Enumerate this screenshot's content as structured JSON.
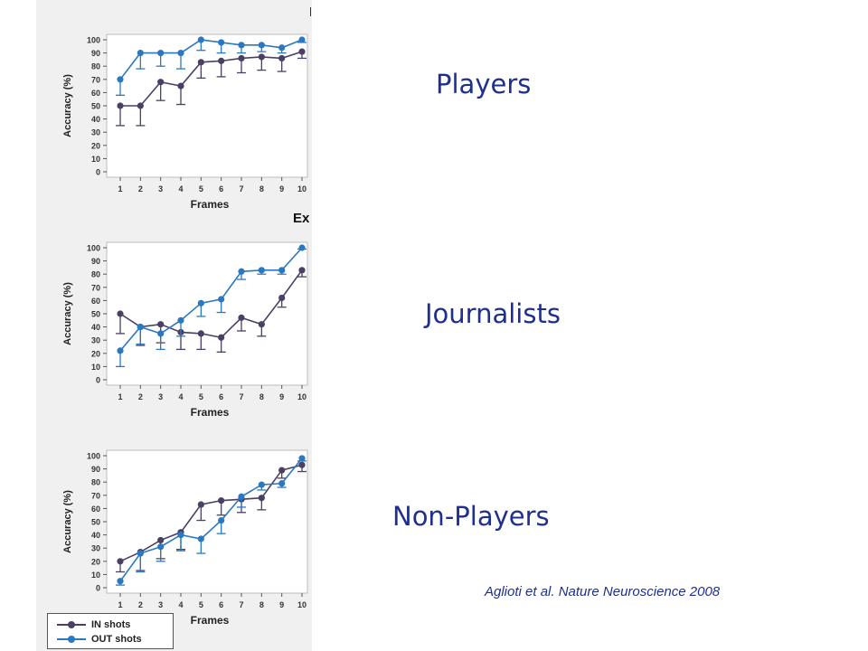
{
  "labels": {
    "players": "Players",
    "journalists": "Journalists",
    "non_players": "Non-Players",
    "citation": "Aglioti et al. Nature Neuroscience 2008",
    "cutoff_fragment": "Ex"
  },
  "legend": {
    "in_shots": "IN shots",
    "out_shots": "OUT shots"
  },
  "colors": {
    "in_shots": "#4b3f63",
    "out_shots": "#2b78c2",
    "label_text": "#1f2f8f"
  },
  "chart_data": [
    {
      "type": "line",
      "xlabel": "Frames",
      "ylabel": "Accuracy (%)",
      "x": [
        1,
        2,
        3,
        4,
        5,
        6,
        7,
        8,
        9,
        10
      ],
      "ylim": [
        0,
        100
      ],
      "yticks": [
        0,
        10,
        20,
        30,
        40,
        50,
        60,
        70,
        80,
        90,
        100
      ],
      "series": [
        {
          "name": "IN shots",
          "values": [
            50,
            50,
            68,
            65,
            83,
            84,
            86,
            87,
            86,
            91
          ],
          "err": [
            15,
            15,
            14,
            14,
            12,
            12,
            11,
            10,
            10,
            5
          ]
        },
        {
          "name": "OUT shots",
          "values": [
            70,
            90,
            90,
            90,
            100,
            98,
            96,
            96,
            94,
            100
          ],
          "err": [
            12,
            12,
            10,
            12,
            8,
            8,
            6,
            5,
            4,
            2
          ]
        }
      ]
    },
    {
      "type": "line",
      "xlabel": "Frames",
      "ylabel": "Accuracy (%)",
      "x": [
        1,
        2,
        3,
        4,
        5,
        6,
        7,
        8,
        9,
        10
      ],
      "ylim": [
        0,
        100
      ],
      "yticks": [
        0,
        10,
        20,
        30,
        40,
        50,
        60,
        70,
        80,
        90,
        100
      ],
      "series": [
        {
          "name": "IN shots",
          "values": [
            50,
            40,
            42,
            36,
            35,
            32,
            47,
            42,
            62,
            83
          ],
          "err": [
            15,
            14,
            14,
            13,
            12,
            11,
            10,
            9,
            7,
            5
          ]
        },
        {
          "name": "OUT shots",
          "values": [
            22,
            40,
            35,
            45,
            58,
            61,
            82,
            83,
            83,
            100
          ],
          "err": [
            12,
            13,
            12,
            12,
            10,
            10,
            6,
            3,
            3,
            1
          ]
        }
      ]
    },
    {
      "type": "line",
      "xlabel": "Frames",
      "ylabel": "Accuracy (%)",
      "x": [
        1,
        2,
        3,
        4,
        5,
        6,
        7,
        8,
        9,
        10
      ],
      "ylim": [
        0,
        100
      ],
      "yticks": [
        0,
        10,
        20,
        30,
        40,
        50,
        60,
        70,
        80,
        90,
        100
      ],
      "series": [
        {
          "name": "IN shots",
          "values": [
            20,
            27,
            36,
            42,
            63,
            66,
            67,
            68,
            89,
            93
          ],
          "err": [
            8,
            14,
            14,
            13,
            12,
            11,
            10,
            9,
            6,
            5
          ]
        },
        {
          "name": "OUT shots",
          "values": [
            5,
            26,
            31,
            40,
            37,
            51,
            69,
            78,
            79,
            98
          ],
          "err": [
            3,
            14,
            11,
            12,
            11,
            10,
            8,
            4,
            3,
            2
          ]
        }
      ]
    }
  ]
}
